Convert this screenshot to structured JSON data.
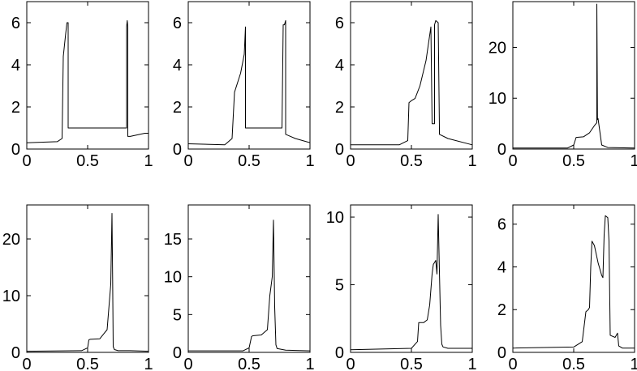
{
  "colors": {
    "line": "#000000",
    "axes": "#000000",
    "background": "#ffffff"
  },
  "chart_data": [
    {
      "type": "line",
      "xlim": [
        0,
        1
      ],
      "ylim": [
        0,
        7
      ],
      "xticks": [
        0,
        0.5,
        1
      ],
      "xtick_labels": [
        "0",
        "0.5",
        "1"
      ],
      "yticks": [
        0,
        2,
        4,
        6
      ],
      "ytick_labels": [
        "0",
        "2",
        "4",
        "6"
      ],
      "grid": false,
      "series": [
        {
          "x": [
            0,
            0.25,
            0.29,
            0.3,
            0.32,
            0.33,
            0.34,
            0.34,
            0.5,
            0.82,
            0.82,
            0.825,
            0.83,
            0.83,
            0.85,
            0.97,
            1.0
          ],
          "y": [
            0.3,
            0.35,
            0.5,
            4.4,
            5.5,
            6.0,
            6.0,
            1.0,
            1.0,
            1.0,
            5.8,
            6.1,
            5.8,
            0.6,
            0.6,
            0.75,
            0.75
          ]
        }
      ]
    },
    {
      "type": "line",
      "xlim": [
        0,
        1
      ],
      "ylim": [
        0,
        7
      ],
      "xticks": [
        0,
        0.5,
        1
      ],
      "xtick_labels": [
        "0",
        "0.5",
        "1"
      ],
      "yticks": [
        0,
        2,
        4,
        6
      ],
      "ytick_labels": [
        "0",
        "2",
        "4",
        "6"
      ],
      "grid": false,
      "series": [
        {
          "x": [
            0,
            0.3,
            0.36,
            0.38,
            0.43,
            0.46,
            0.47,
            0.47,
            0.55,
            0.77,
            0.78,
            0.79,
            0.8,
            0.8,
            0.84,
            0.88,
            1.0
          ],
          "y": [
            0.25,
            0.2,
            0.5,
            2.7,
            3.6,
            4.5,
            5.8,
            1.0,
            1.0,
            1.0,
            5.9,
            5.9,
            6.1,
            0.7,
            0.6,
            0.5,
            0.3
          ]
        }
      ]
    },
    {
      "type": "line",
      "xlim": [
        0,
        1
      ],
      "ylim": [
        0,
        7
      ],
      "xticks": [
        0,
        0.5,
        1
      ],
      "xtick_labels": [
        "0",
        "0.5",
        "1"
      ],
      "yticks": [
        0,
        2,
        4,
        6
      ],
      "ytick_labels": [
        "0",
        "2",
        "4",
        "6"
      ],
      "grid": false,
      "series": [
        {
          "x": [
            0,
            0.4,
            0.47,
            0.48,
            0.5,
            0.53,
            0.57,
            0.62,
            0.66,
            0.67,
            0.67,
            0.69,
            0.69,
            0.7,
            0.72,
            0.73,
            0.73,
            0.8,
            1.0
          ],
          "y": [
            0.2,
            0.2,
            0.4,
            2.2,
            2.3,
            2.4,
            3.0,
            4.2,
            5.8,
            1.2,
            1.2,
            1.2,
            5.9,
            6.1,
            6.0,
            1.0,
            0.7,
            0.5,
            0.2
          ]
        }
      ]
    },
    {
      "type": "line",
      "xlim": [
        0,
        1
      ],
      "ylim": [
        0,
        29
      ],
      "xticks": [
        0,
        0.5,
        1
      ],
      "xtick_labels": [
        "0",
        "0.5",
        "1"
      ],
      "yticks": [
        0,
        10,
        20
      ],
      "ytick_labels": [
        "0",
        "10",
        "20"
      ],
      "grid": false,
      "series": [
        {
          "x": [
            0,
            0.45,
            0.5,
            0.52,
            0.58,
            0.63,
            0.67,
            0.69,
            0.69,
            0.695,
            0.7,
            0.73,
            0.78,
            1.0
          ],
          "y": [
            0.2,
            0.2,
            0.8,
            2.3,
            2.4,
            3.2,
            4.6,
            5.2,
            28.5,
            5.8,
            6.0,
            0.8,
            0.3,
            0.2
          ]
        }
      ]
    },
    {
      "type": "line",
      "xlim": [
        0,
        1
      ],
      "ylim": [
        0,
        26
      ],
      "xticks": [
        0,
        0.5,
        1
      ],
      "xtick_labels": [
        "0",
        "0.5",
        "1"
      ],
      "yticks": [
        0,
        10,
        20
      ],
      "ytick_labels": [
        "0",
        "10",
        "20"
      ],
      "grid": false,
      "series": [
        {
          "x": [
            0,
            0.45,
            0.5,
            0.51,
            0.52,
            0.6,
            0.63,
            0.66,
            0.69,
            0.7,
            0.705,
            0.71,
            0.72,
            0.75,
            0.85,
            1.0
          ],
          "y": [
            0.2,
            0.3,
            0.8,
            2.2,
            2.3,
            2.4,
            3.2,
            4.0,
            12.0,
            24.5,
            13.0,
            1.0,
            0.5,
            0.3,
            0.3,
            0.2
          ]
        }
      ]
    },
    {
      "type": "line",
      "xlim": [
        0,
        1
      ],
      "ylim": [
        0,
        19.5
      ],
      "xticks": [
        0,
        0.5,
        1
      ],
      "xtick_labels": [
        "0",
        "0.5",
        "1"
      ],
      "yticks": [
        0,
        5,
        10,
        15
      ],
      "ytick_labels": [
        "0",
        "5",
        "10",
        "15"
      ],
      "grid": false,
      "series": [
        {
          "x": [
            0,
            0.45,
            0.5,
            0.52,
            0.53,
            0.6,
            0.65,
            0.67,
            0.69,
            0.7,
            0.71,
            0.72,
            0.73,
            0.8,
            1.0
          ],
          "y": [
            0.2,
            0.2,
            0.6,
            2.1,
            2.2,
            2.3,
            3.0,
            7.5,
            10.0,
            17.5,
            6.0,
            1.0,
            0.5,
            0.3,
            0.2
          ]
        }
      ]
    },
    {
      "type": "line",
      "xlim": [
        0,
        1
      ],
      "ylim": [
        0,
        10.9
      ],
      "xticks": [
        0,
        0.5,
        1
      ],
      "xtick_labels": [
        "0",
        "0.5",
        "1"
      ],
      "yticks": [
        0,
        5,
        10
      ],
      "ytick_labels": [
        "0",
        "5",
        "10"
      ],
      "grid": false,
      "series": [
        {
          "x": [
            0,
            0.5,
            0.55,
            0.56,
            0.6,
            0.63,
            0.65,
            0.67,
            0.68,
            0.7,
            0.71,
            0.72,
            0.73,
            0.74,
            0.75,
            0.76,
            0.8,
            1.0
          ],
          "y": [
            0.2,
            0.3,
            0.8,
            2.2,
            2.2,
            2.4,
            3.5,
            5.8,
            6.5,
            6.8,
            5.8,
            10.2,
            6.0,
            2.0,
            0.6,
            0.4,
            0.3,
            0.3
          ]
        }
      ]
    },
    {
      "type": "line",
      "xlim": [
        0,
        1
      ],
      "ylim": [
        0,
        6.9
      ],
      "xticks": [
        0,
        0.5,
        1
      ],
      "xtick_labels": [
        "0",
        "0.5",
        "1"
      ],
      "yticks": [
        0,
        2,
        4,
        6
      ],
      "ytick_labels": [
        "0",
        "2",
        "4",
        "6"
      ],
      "grid": false,
      "series": [
        {
          "x": [
            0,
            0.5,
            0.57,
            0.6,
            0.62,
            0.63,
            0.64,
            0.65,
            0.67,
            0.7,
            0.73,
            0.74,
            0.75,
            0.76,
            0.78,
            0.79,
            0.8,
            0.84,
            0.86,
            0.87,
            0.9,
            1.0
          ],
          "y": [
            0.2,
            0.25,
            0.5,
            1.9,
            2.0,
            2.1,
            4.0,
            5.2,
            5.0,
            4.2,
            3.6,
            3.5,
            5.5,
            6.4,
            6.3,
            5.2,
            0.8,
            0.7,
            0.9,
            0.3,
            0.2,
            0.2
          ]
        }
      ]
    }
  ]
}
